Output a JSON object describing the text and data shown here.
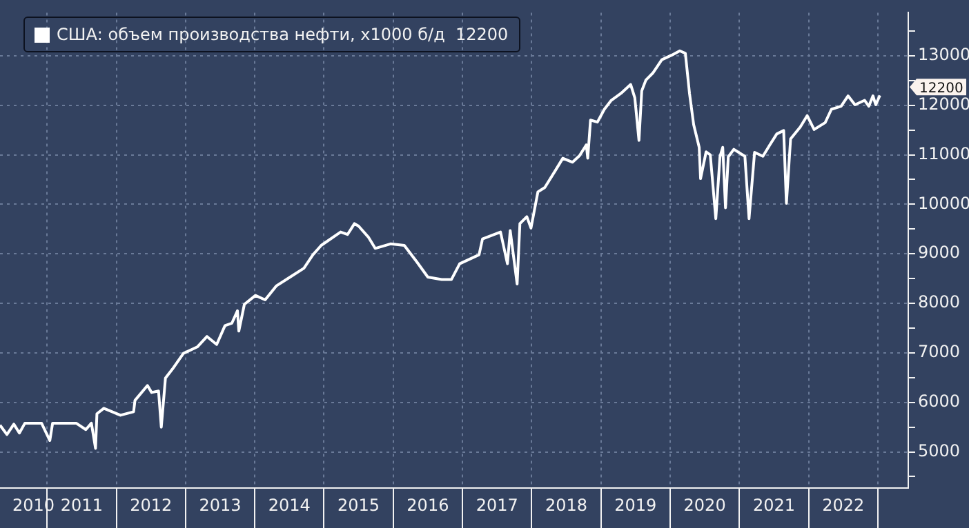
{
  "chart_data": {
    "type": "line",
    "x": [
      2010.32,
      2010.42,
      2010.52,
      2010.6,
      2010.68,
      2010.92,
      2011.04,
      2011.08,
      2011.42,
      2011.56,
      2011.64,
      2011.7,
      2011.72,
      2011.82,
      2012.06,
      2012.25,
      2012.27,
      2012.45,
      2012.51,
      2012.61,
      2012.65,
      2012.71,
      2012.81,
      2012.97,
      2013.17,
      2013.31,
      2013.45,
      2013.57,
      2013.67,
      2013.75,
      2013.77,
      2013.85,
      2014.01,
      2014.15,
      2014.31,
      2014.51,
      2014.71,
      2014.84,
      2014.96,
      2015.24,
      2015.34,
      2015.44,
      2015.5,
      2015.64,
      2015.74,
      2015.96,
      2016.16,
      2016.34,
      2016.5,
      2016.7,
      2016.84,
      2016.96,
      2017.24,
      2017.29,
      2017.55,
      2017.65,
      2017.69,
      2017.79,
      2017.83,
      2017.93,
      2017.99,
      2018.09,
      2018.19,
      2018.35,
      2018.45,
      2018.59,
      2018.69,
      2018.79,
      2018.81,
      2018.85,
      2018.95,
      2019.05,
      2019.15,
      2019.29,
      2019.43,
      2019.49,
      2019.55,
      2019.59,
      2019.65,
      2019.75,
      2019.88,
      2020.02,
      2020.14,
      2020.22,
      2020.28,
      2020.34,
      2020.42,
      2020.44,
      2020.52,
      2020.58,
      2020.66,
      2020.72,
      2020.76,
      2020.8,
      2020.84,
      2020.92,
      2021.08,
      2021.14,
      2021.22,
      2021.34,
      2021.44,
      2021.54,
      2021.64,
      2021.68,
      2021.74,
      2021.88,
      2021.98,
      2022.08,
      2022.24,
      2022.33,
      2022.47,
      2022.57,
      2022.67,
      2022.81,
      2022.87,
      2022.93,
      2022.97,
      2023.03
    ],
    "series": [
      {
        "name": "США: объем производства нефти, х1000 б/д  12200",
        "color": "#ffffff",
        "values": [
          5540,
          5350,
          5560,
          5380,
          5580,
          5580,
          5230,
          5580,
          5580,
          5450,
          5580,
          5070,
          5770,
          5880,
          5740,
          5810,
          6040,
          6340,
          6200,
          6230,
          5500,
          6490,
          6670,
          6990,
          7120,
          7330,
          7170,
          7550,
          7600,
          7850,
          7440,
          7980,
          8160,
          8070,
          8350,
          8530,
          8710,
          8980,
          9170,
          9440,
          9390,
          9610,
          9560,
          9340,
          9110,
          9200,
          9170,
          8840,
          8530,
          8480,
          8480,
          8800,
          8980,
          9300,
          9440,
          8800,
          9470,
          8390,
          9610,
          9750,
          9520,
          10250,
          10340,
          10700,
          10930,
          10850,
          10980,
          11200,
          10930,
          11700,
          11660,
          11920,
          12100,
          12240,
          12420,
          12150,
          11290,
          12290,
          12510,
          12650,
          12920,
          13010,
          13100,
          13050,
          12240,
          11610,
          11150,
          10520,
          11060,
          11000,
          9710,
          10960,
          11150,
          9930,
          10960,
          11110,
          10970,
          9710,
          11050,
          10970,
          11200,
          11420,
          11490,
          10020,
          11320,
          11560,
          11790,
          11510,
          11650,
          11920,
          11980,
          12190,
          12010,
          12100,
          11980,
          12190,
          12010,
          12200
        ],
        "value_labels": [
          null,
          null,
          null,
          null,
          null,
          null,
          null,
          null,
          null,
          null,
          null,
          null,
          null,
          null,
          null,
          null,
          null,
          null,
          null,
          null,
          null,
          null,
          null,
          null,
          null,
          null,
          null,
          null,
          null,
          null,
          null,
          null,
          null,
          null,
          null,
          null,
          null,
          null,
          null,
          null,
          null,
          null,
          null,
          null,
          null,
          null,
          null,
          null,
          null,
          null,
          null,
          null,
          null,
          null,
          null,
          null,
          null,
          null,
          null,
          null,
          null,
          null,
          null,
          null,
          null,
          null,
          null,
          null,
          null,
          null,
          null,
          null,
          null,
          null,
          null,
          null,
          null,
          null,
          null,
          null,
          null,
          null,
          null,
          null,
          null,
          null,
          null,
          null,
          null,
          null,
          null,
          null,
          null,
          null,
          null,
          null,
          null,
          null,
          null,
          null,
          null,
          null,
          null,
          null,
          null,
          null,
          null,
          null,
          null,
          null,
          null,
          null,
          null,
          null,
          null,
          null,
          null,
          null
        ]
      }
    ],
    "annotations": [
      "12200"
    ],
    "xlim": [
      2010.32,
      2023.44
    ],
    "xticks": [
      {
        "value": 2010.5,
        "label": "2010"
      },
      {
        "value": 2011,
        "label": null
      },
      {
        "value": 2011.5,
        "label": "2011"
      },
      {
        "value": 2012,
        "label": null
      },
      {
        "value": 2012.5,
        "label": "2012"
      },
      {
        "value": 2013,
        "label": null
      },
      {
        "value": 2013.5,
        "label": "2013"
      },
      {
        "value": 2014,
        "label": null
      },
      {
        "value": 2014.5,
        "label": "2014"
      },
      {
        "value": 2015,
        "label": null
      },
      {
        "value": 2015.5,
        "label": "2015"
      },
      {
        "value": 2016,
        "label": null
      },
      {
        "value": 2016.5,
        "label": "2016"
      },
      {
        "value": 2017,
        "label": null
      },
      {
        "value": 2017.5,
        "label": "2017"
      },
      {
        "value": 2018,
        "label": null
      },
      {
        "value": 2018.5,
        "label": "2018"
      },
      {
        "value": 2019,
        "label": null
      },
      {
        "value": 2019.5,
        "label": "2019"
      },
      {
        "value": 2020,
        "label": null
      },
      {
        "value": 2020.5,
        "label": "2020"
      },
      {
        "value": 2021,
        "label": null
      },
      {
        "value": 2021.5,
        "label": "2021"
      },
      {
        "value": 2022,
        "label": null
      },
      {
        "value": 2022.5,
        "label": "2022"
      },
      {
        "value": 2023,
        "label": null
      }
    ],
    "ylim": [
      4270,
      13870
    ],
    "yticks": [
      {
        "value": 4500,
        "label": null
      },
      5000,
      {
        "value": 5500,
        "label": null
      },
      6000,
      {
        "value": 6500,
        "label": null
      },
      7000,
      {
        "value": 7500,
        "label": null
      },
      8000,
      {
        "value": 8500,
        "label": null
      },
      9000,
      {
        "value": 9500,
        "label": null
      },
      10000,
      {
        "value": 10500,
        "label": null
      },
      11000,
      {
        "value": 11500,
        "label": null
      },
      12000,
      {
        "value": 12500,
        "label": null
      },
      13000,
      {
        "value": 13500,
        "label": null
      }
    ],
    "grid": true,
    "legend": "top left",
    "marker": "none",
    "line_style": "solid"
  }
}
